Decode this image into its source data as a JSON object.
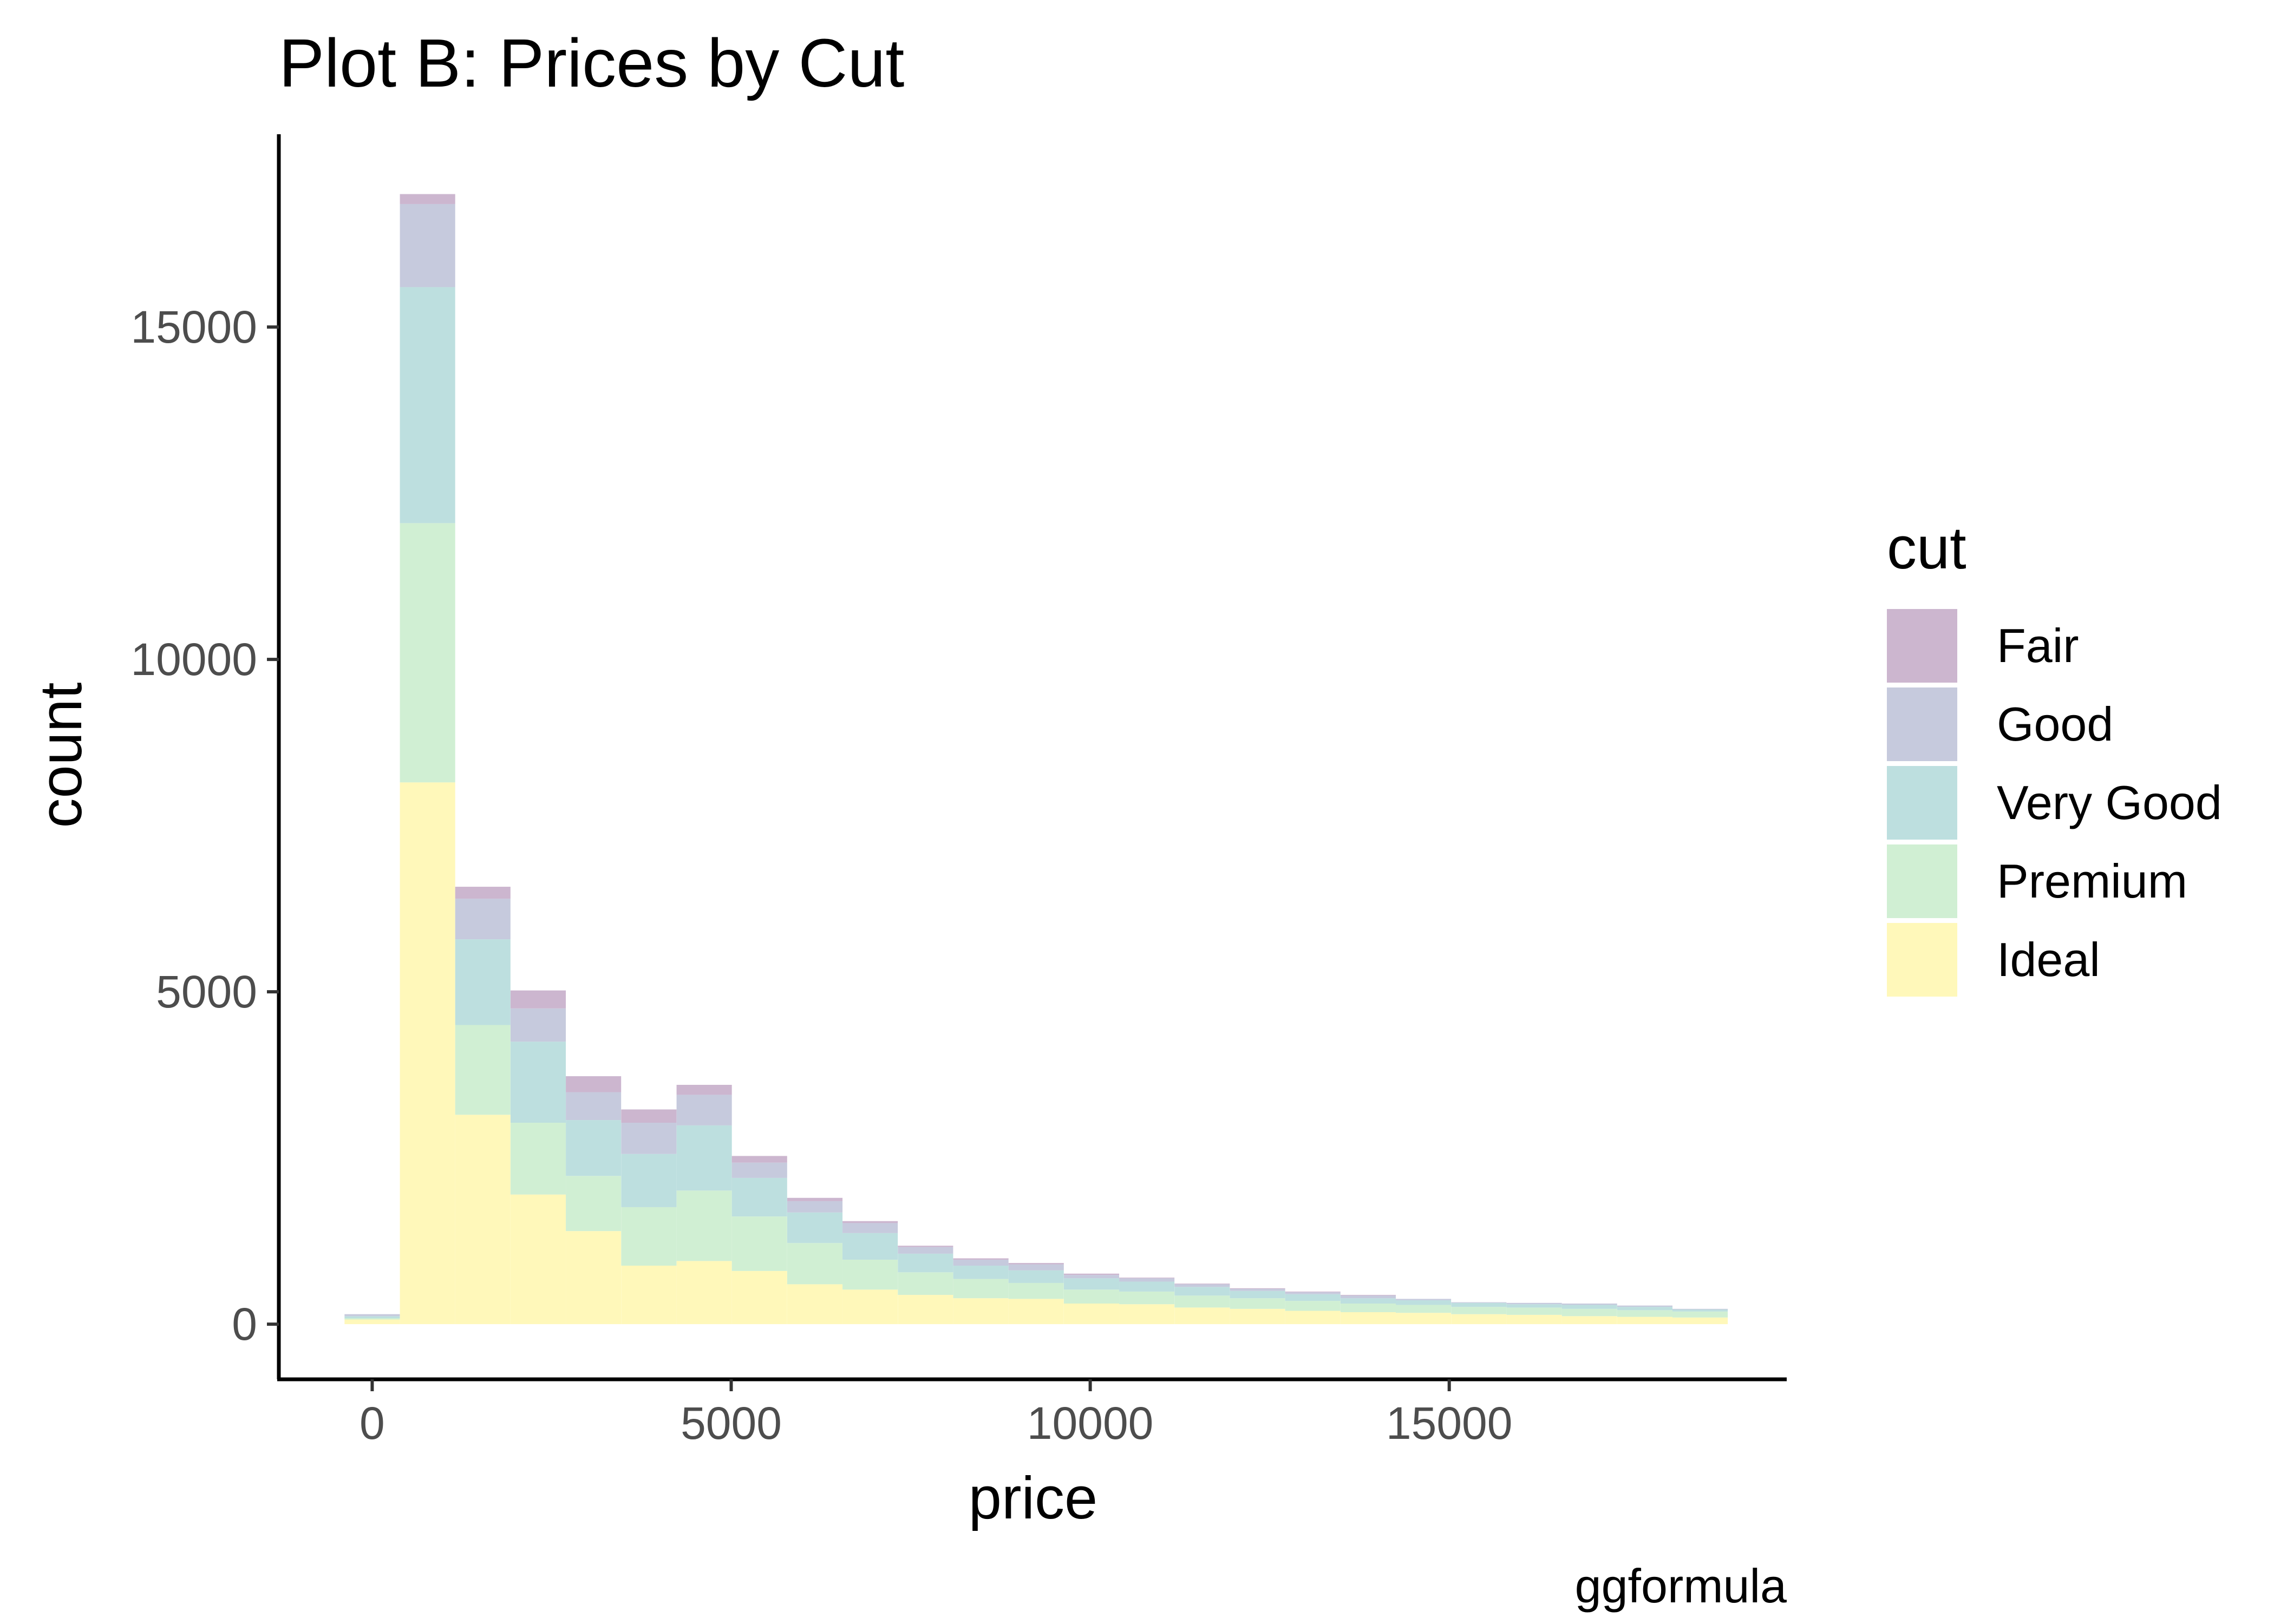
{
  "chart_data": {
    "type": "bar",
    "stacked": true,
    "title": "Plot B: Prices by Cut",
    "xlabel": "price",
    "ylabel": "count",
    "caption": "ggformula",
    "legend_title": "cut",
    "legend_position": "right",
    "grid": false,
    "xlim": [
      -1300,
      19700
    ],
    "ylim": [
      -830,
      17900
    ],
    "x_ticks": [
      0,
      5000,
      10000,
      15000
    ],
    "x_tick_labels": [
      "0",
      "5000",
      "10000",
      "15000"
    ],
    "y_ticks": [
      0,
      5000,
      10000,
      15000
    ],
    "y_tick_labels": [
      "0",
      "5000",
      "10000",
      "15000"
    ],
    "bin_width": 770,
    "bin_centers": [
      0,
      771,
      1541,
      2312,
      3082,
      3853,
      4624,
      5394,
      6165,
      6935,
      7706,
      8477,
      9247,
      10018,
      10788,
      11559,
      12330,
      13100,
      13871,
      14641,
      15412,
      16183,
      16953,
      17724,
      18494
    ],
    "series": [
      {
        "name": "Ideal",
        "color": "#FFF8BA",
        "values": [
          70,
          8150,
          3150,
          1950,
          1400,
          880,
          950,
          800,
          600,
          520,
          440,
          390,
          380,
          310,
          300,
          250,
          230,
          200,
          180,
          170,
          150,
          140,
          120,
          110,
          100
        ]
      },
      {
        "name": "Premium",
        "color": "#D0EFD3",
        "values": [
          20,
          3900,
          1350,
          1080,
          830,
          880,
          1060,
          820,
          620,
          450,
          340,
          290,
          240,
          210,
          190,
          180,
          160,
          150,
          130,
          120,
          110,
          110,
          110,
          100,
          90
        ]
      },
      {
        "name": "Very Good",
        "color": "#BDDFDF",
        "values": [
          30,
          3550,
          1290,
          1220,
          840,
          800,
          980,
          580,
          460,
          400,
          280,
          200,
          190,
          170,
          150,
          130,
          110,
          100,
          80,
          70,
          60,
          50,
          60,
          50,
          30
        ]
      },
      {
        "name": "Good",
        "color": "#C6CADD",
        "values": [
          30,
          1250,
          610,
          500,
          420,
          470,
          460,
          230,
          170,
          150,
          100,
          90,
          90,
          50,
          50,
          40,
          30,
          30,
          40,
          20,
          10,
          20,
          20,
          20,
          10
        ]
      },
      {
        "name": "Fair",
        "color": "#CCB6CF",
        "values": [
          0,
          150,
          180,
          270,
          240,
          200,
          150,
          100,
          50,
          30,
          20,
          20,
          20,
          20,
          10,
          10,
          10,
          10,
          10,
          0,
          0,
          0,
          0,
          0,
          0
        ]
      }
    ]
  }
}
